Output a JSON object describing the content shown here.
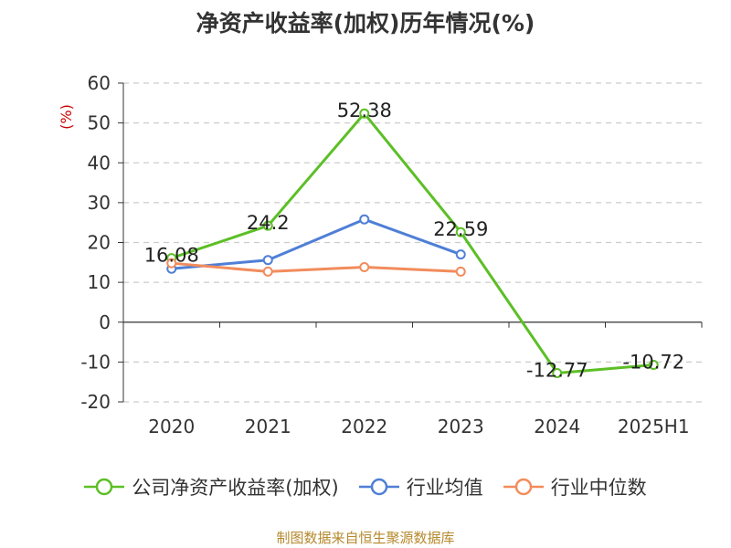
{
  "chart_data": {
    "type": "line",
    "title": "净资产收益率(加权)历年情况(%)",
    "ylabel": "(%)",
    "categories": [
      "2020",
      "2021",
      "2022",
      "2023",
      "2024",
      "2025H1"
    ],
    "ylim": [
      -20,
      60
    ],
    "yticks": [
      -20,
      -10,
      0,
      10,
      20,
      30,
      40,
      50,
      60
    ],
    "grid": true,
    "legend_position": "bottom",
    "series": [
      {
        "name": "公司净资产收益率(加权)",
        "color": "#5cbf26",
        "values": [
          16.08,
          24.2,
          52.38,
          22.59,
          -12.77,
          -10.72
        ],
        "labels": [
          "16.08",
          "24.2",
          "52.38",
          "22.59",
          "-12.77",
          "-10.72"
        ]
      },
      {
        "name": "行业均值",
        "color": "#4f7fd6",
        "values": [
          13.4,
          15.6,
          25.8,
          17.0,
          null,
          null
        ]
      },
      {
        "name": "行业中位数",
        "color": "#f28c5c",
        "values": [
          14.8,
          12.7,
          13.8,
          12.7,
          null,
          null
        ]
      }
    ]
  },
  "source": "制图数据来自恒生聚源数据库"
}
